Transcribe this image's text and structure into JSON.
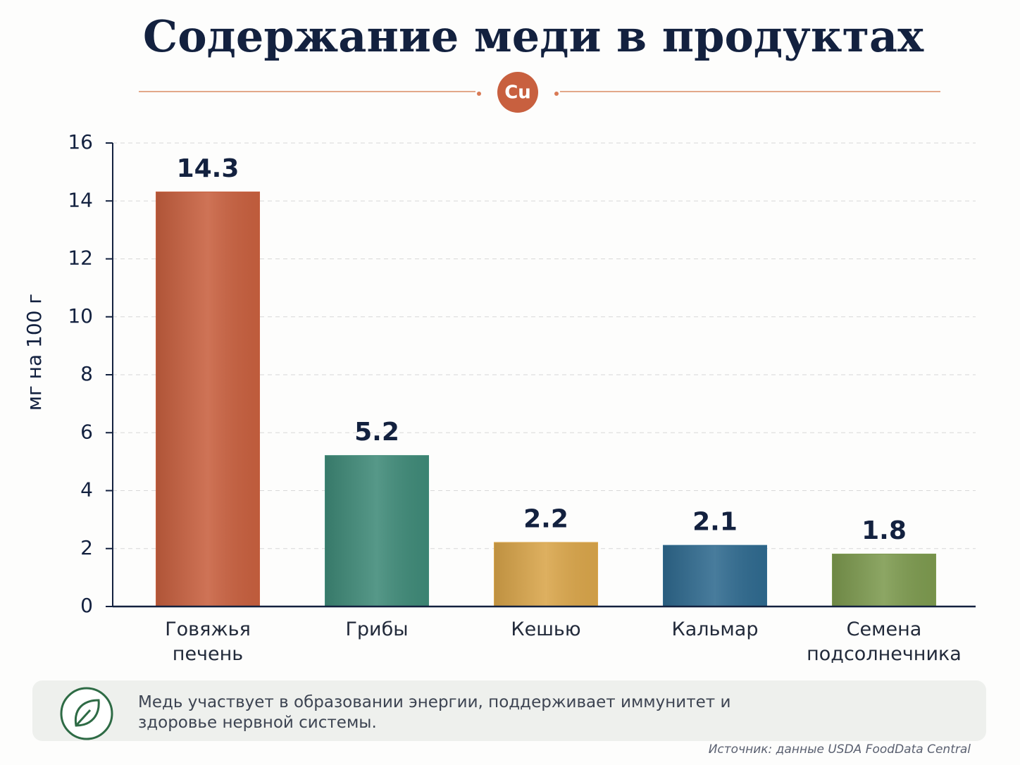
{
  "chart_data": {
    "type": "bar",
    "title": "Содержание меди в продуктах",
    "badge": "Cu",
    "y_label": "мг на 100 г",
    "categories": [
      "Говяжья печень",
      "Грибы",
      "Кешью",
      "Кальмар",
      "Семена подсолнечника"
    ],
    "values": [
      14.3,
      5.2,
      2.2,
      2.1,
      1.8
    ],
    "colors": [
      "#c8603f",
      "#3f8a78",
      "#d9a54a",
      "#2f6a8f",
      "#7d9a4f"
    ],
    "ylim": [
      0,
      16
    ],
    "yticks": [
      0,
      2,
      4,
      6,
      8,
      10,
      12,
      14,
      16
    ],
    "grid": true,
    "note": "Медь участвует в образовании энергии, поддерживает иммунитет и здоровье нервной системы.",
    "source": "Источник: данные USDA FoodData Central"
  }
}
